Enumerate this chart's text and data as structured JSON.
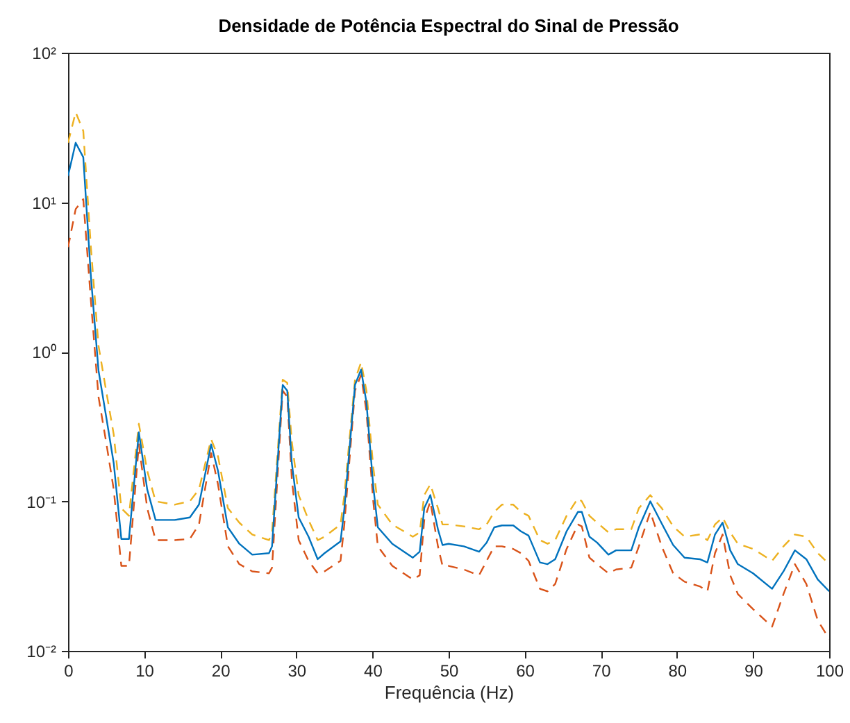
{
  "chart_data": {
    "type": "line",
    "title": "Densidade de Potência Espectral do Sinal de Pressão",
    "xlabel": "Frequência (Hz)",
    "x": [
      0,
      1,
      2,
      3,
      4,
      5,
      6,
      7,
      8,
      9.3,
      10.4,
      11.5,
      14,
      16,
      17.2,
      18.8,
      19.7,
      21,
      22.5,
      24.2,
      26.4,
      26.8,
      28.2,
      28.8,
      29.4,
      30.3,
      31.6,
      32.8,
      33.7,
      35.8,
      36.3,
      37.7,
      38.5,
      39.2,
      40.1,
      40.7,
      42.6,
      45.3,
      46.2,
      46.8,
      47.6,
      48.6,
      49.2,
      50,
      52,
      54,
      55,
      56,
      57,
      58.5,
      59.5,
      60.5,
      62,
      63,
      64,
      65.5,
      67,
      67.5,
      68.5,
      69.5,
      71,
      72,
      74,
      75,
      76.5,
      78,
      79.5,
      81,
      83,
      84,
      85,
      86,
      87,
      88,
      90,
      92.5,
      94,
      95.5,
      97,
      98.5,
      100
    ],
    "series": [
      {
        "color": "#edb120",
        "line_style": "dashed",
        "values": [
          25,
          40,
          30,
          5,
          1.1,
          0.55,
          0.28,
          0.09,
          0.08,
          0.33,
          0.16,
          0.1,
          0.095,
          0.1,
          0.12,
          0.26,
          0.2,
          0.09,
          0.072,
          0.06,
          0.055,
          0.062,
          0.65,
          0.62,
          0.25,
          0.11,
          0.075,
          0.055,
          0.058,
          0.07,
          0.11,
          0.65,
          0.85,
          0.55,
          0.17,
          0.095,
          0.07,
          0.058,
          0.062,
          0.11,
          0.13,
          0.09,
          0.07,
          0.07,
          0.068,
          0.065,
          0.07,
          0.085,
          0.095,
          0.095,
          0.085,
          0.08,
          0.055,
          0.052,
          0.055,
          0.08,
          0.105,
          0.1,
          0.08,
          0.072,
          0.062,
          0.065,
          0.065,
          0.09,
          0.11,
          0.09,
          0.068,
          0.058,
          0.06,
          0.055,
          0.07,
          0.078,
          0.062,
          0.052,
          0.048,
          0.04,
          0.05,
          0.06,
          0.058,
          0.045,
          0.038
        ]
      },
      {
        "color": "#d95319",
        "line_style": "dashed",
        "values": [
          5,
          9,
          10.5,
          2.2,
          0.5,
          0.25,
          0.12,
          0.037,
          0.037,
          0.24,
          0.09,
          0.055,
          0.055,
          0.056,
          0.07,
          0.21,
          0.13,
          0.05,
          0.038,
          0.034,
          0.033,
          0.036,
          0.55,
          0.5,
          0.14,
          0.055,
          0.04,
          0.033,
          0.034,
          0.04,
          0.07,
          0.55,
          0.7,
          0.4,
          0.1,
          0.05,
          0.037,
          0.03,
          0.032,
          0.075,
          0.1,
          0.05,
          0.037,
          0.037,
          0.035,
          0.032,
          0.04,
          0.05,
          0.05,
          0.048,
          0.045,
          0.04,
          0.026,
          0.025,
          0.028,
          0.048,
          0.07,
          0.068,
          0.042,
          0.038,
          0.033,
          0.035,
          0.036,
          0.05,
          0.085,
          0.05,
          0.033,
          0.029,
          0.027,
          0.025,
          0.045,
          0.06,
          0.032,
          0.024,
          0.019,
          0.0145,
          0.024,
          0.038,
          0.028,
          0.016,
          0.012
        ]
      },
      {
        "color": "#0072bd",
        "line_style": "solid",
        "values": [
          15,
          25,
          20,
          3.2,
          0.75,
          0.37,
          0.18,
          0.056,
          0.056,
          0.29,
          0.12,
          0.075,
          0.075,
          0.078,
          0.095,
          0.24,
          0.16,
          0.067,
          0.052,
          0.044,
          0.045,
          0.05,
          0.6,
          0.55,
          0.18,
          0.078,
          0.058,
          0.041,
          0.045,
          0.054,
          0.089,
          0.6,
          0.76,
          0.46,
          0.126,
          0.067,
          0.052,
          0.042,
          0.046,
          0.09,
          0.11,
          0.065,
          0.051,
          0.052,
          0.05,
          0.046,
          0.053,
          0.067,
          0.069,
          0.069,
          0.063,
          0.059,
          0.039,
          0.038,
          0.041,
          0.063,
          0.085,
          0.085,
          0.058,
          0.053,
          0.044,
          0.047,
          0.047,
          0.067,
          0.1,
          0.071,
          0.051,
          0.042,
          0.041,
          0.039,
          0.06,
          0.072,
          0.047,
          0.038,
          0.033,
          0.026,
          0.034,
          0.047,
          0.041,
          0.03,
          0.025
        ]
      }
    ],
    "xlim": [
      0,
      100
    ],
    "xticks": [
      0,
      10,
      20,
      30,
      40,
      50,
      60,
      70,
      80,
      90,
      100
    ],
    "ylim": [
      0.01,
      100
    ],
    "yticks": [
      {
        "value": 0.01,
        "label": "10⁻²"
      },
      {
        "value": 0.1,
        "label": "10⁻¹"
      },
      {
        "value": 1,
        "label": "10⁰"
      },
      {
        "value": 10,
        "label": "10¹"
      },
      {
        "value": 100,
        "label": "10²"
      }
    ],
    "log": "y",
    "grid": false,
    "marker": "none"
  }
}
